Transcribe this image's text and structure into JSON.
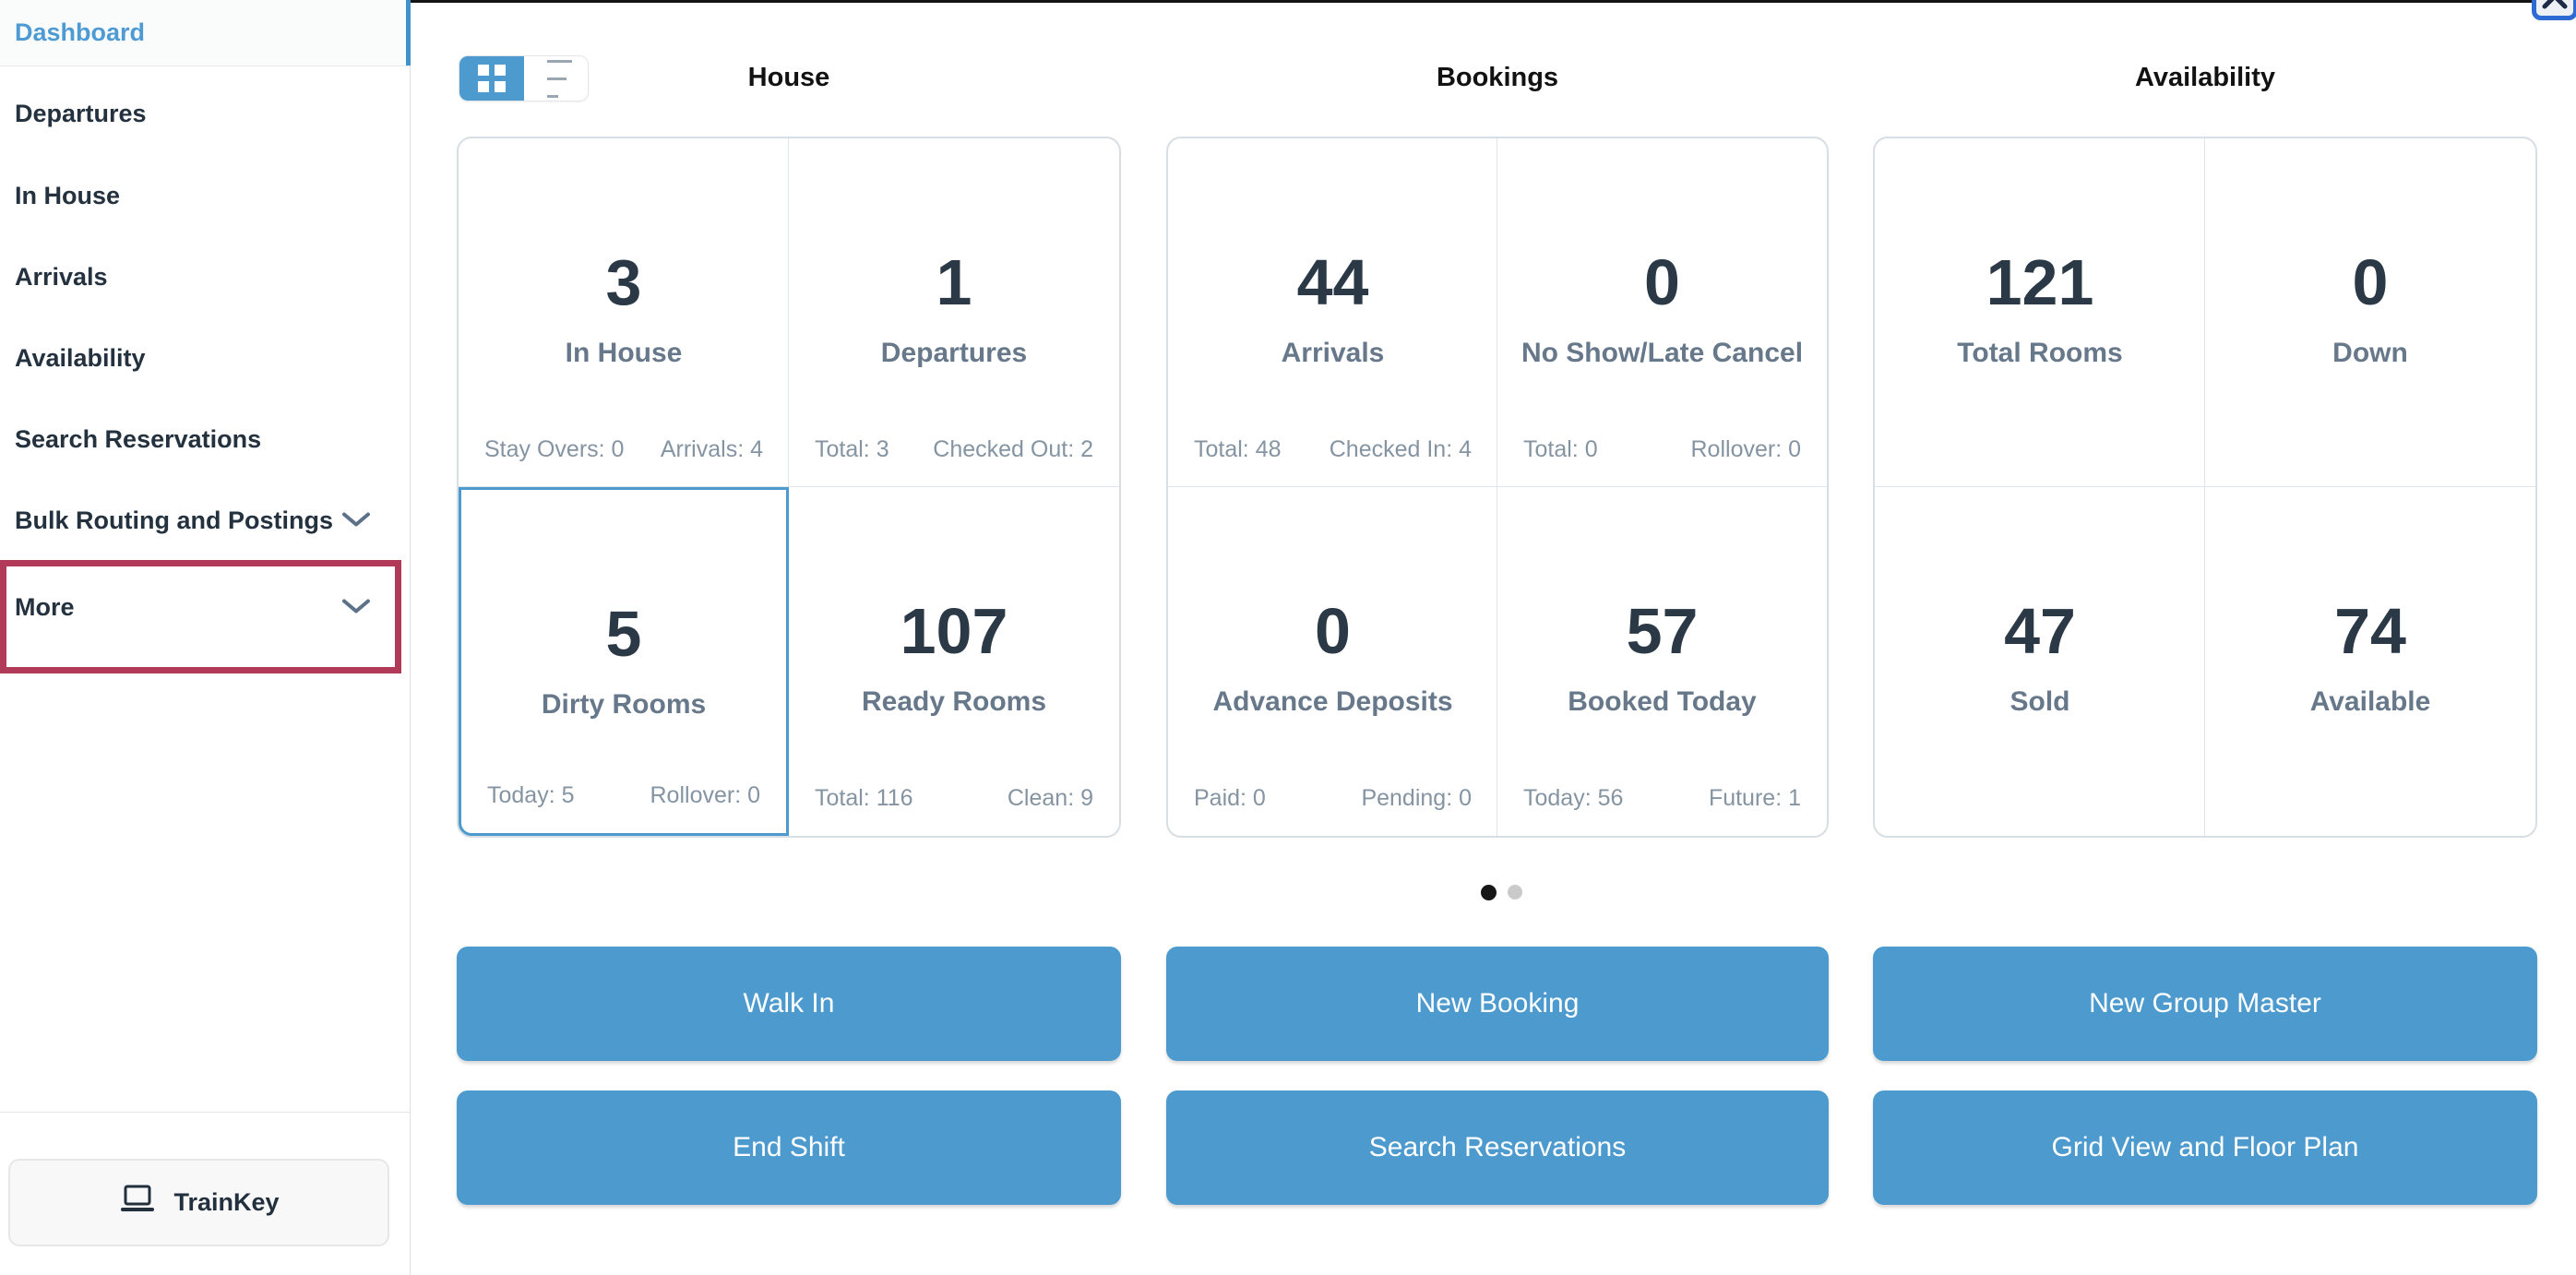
{
  "app": {
    "accent_blue": "#4c9ace",
    "highlight_red": "#b23a59",
    "number_color": "#2b3947",
    "label_color": "#66788a"
  },
  "close_button": {
    "icon": "x-icon"
  },
  "sidebar": {
    "items": [
      {
        "label": "Dashboard",
        "active": true,
        "chevron": false,
        "highlighted": false
      },
      {
        "label": "Departures",
        "active": false,
        "chevron": false,
        "highlighted": false
      },
      {
        "label": "In House",
        "active": false,
        "chevron": false,
        "highlighted": false
      },
      {
        "label": "Arrivals",
        "active": false,
        "chevron": false,
        "highlighted": false
      },
      {
        "label": "Availability",
        "active": false,
        "chevron": false,
        "highlighted": false
      },
      {
        "label": "Search Reservations",
        "active": false,
        "chevron": false,
        "highlighted": false
      },
      {
        "label": "Bulk Routing and Postings",
        "active": false,
        "chevron": true,
        "highlighted": false
      },
      {
        "label": "More",
        "active": false,
        "chevron": true,
        "highlighted": true
      }
    ],
    "trainkey_label": "TrainKey",
    "trainkey_icon": "laptop-icon"
  },
  "view_toggle": {
    "grid_icon": "grid-view-icon",
    "list_icon": "list-view-icon",
    "selected": "grid"
  },
  "columns": [
    {
      "title": "House",
      "cards": [
        {
          "value": "3",
          "label": "In House",
          "stat_left": "Stay Overs: 0",
          "stat_right": "Arrivals: 4",
          "menu_icon": true,
          "selected": false
        },
        {
          "value": "1",
          "label": "Departures",
          "stat_left": "Total: 3",
          "stat_right": "Checked Out: 2",
          "menu_icon": true,
          "selected": false
        },
        {
          "value": "5",
          "label": "Dirty Rooms",
          "stat_left": "Today: 5",
          "stat_right": "Rollover: 0",
          "menu_icon": true,
          "selected": true
        },
        {
          "value": "107",
          "label": "Ready Rooms",
          "stat_left": "Total: 116",
          "stat_right": "Clean: 9",
          "menu_icon": true,
          "selected": false
        }
      ]
    },
    {
      "title": "Bookings",
      "cards": [
        {
          "value": "44",
          "label": "Arrivals",
          "stat_left": "Total: 48",
          "stat_right": "Checked In: 4",
          "menu_icon": true,
          "selected": false
        },
        {
          "value": "0",
          "label": "No Show/Late Cancel",
          "stat_left": "Total: 0",
          "stat_right": "Rollover: 0",
          "menu_icon": true,
          "selected": false
        },
        {
          "value": "0",
          "label": "Advance Deposits",
          "stat_left": "Paid: 0",
          "stat_right": "Pending: 0",
          "menu_icon": true,
          "selected": false
        },
        {
          "value": "57",
          "label": "Booked Today",
          "stat_left": "Today: 56",
          "stat_right": "Future: 1",
          "menu_icon": true,
          "selected": false
        }
      ]
    },
    {
      "title": "Availability",
      "cards": [
        {
          "value": "121",
          "label": "Total Rooms",
          "stat_left": "",
          "stat_right": "",
          "menu_icon": false,
          "selected": false
        },
        {
          "value": "0",
          "label": "Down",
          "stat_left": "",
          "stat_right": "",
          "menu_icon": true,
          "selected": false
        },
        {
          "value": "47",
          "label": "Sold",
          "stat_left": "",
          "stat_right": "",
          "menu_icon": false,
          "selected": false
        },
        {
          "value": "74",
          "label": "Available",
          "stat_left": "",
          "stat_right": "",
          "menu_icon": true,
          "selected": false
        }
      ]
    }
  ],
  "pagination": {
    "page_count": 2,
    "active_page": 1
  },
  "action_buttons": [
    [
      "Walk In",
      "New Booking",
      "New Group Master"
    ],
    [
      "End Shift",
      "Search Reservations",
      "Grid View and Floor Plan"
    ]
  ]
}
